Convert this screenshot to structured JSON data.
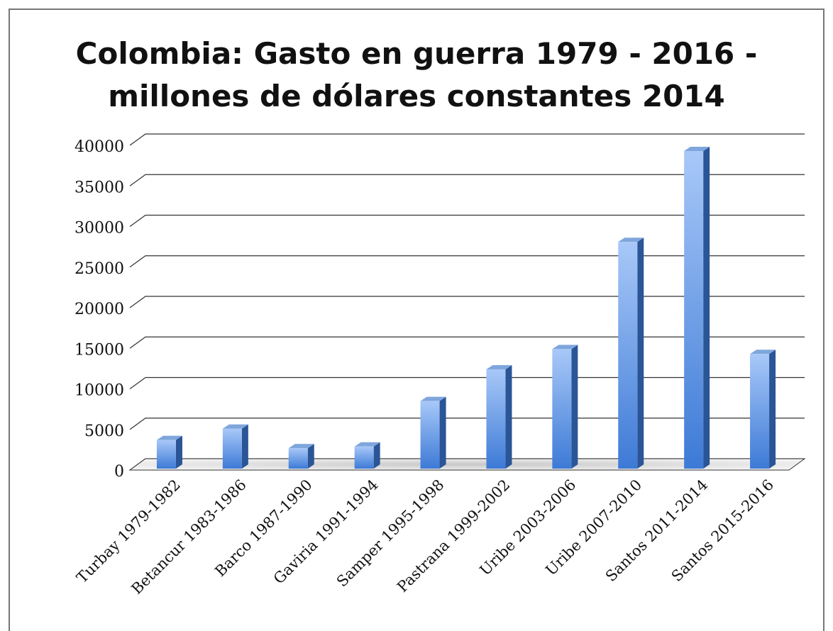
{
  "chart_data": {
    "type": "bar",
    "title_lines": [
      "Colombia: Gasto en guerra 1979 - 2016 -",
      "millones de dólares constantes 2014"
    ],
    "xlabel": "",
    "ylabel": "",
    "categories": [
      "Turbay 1979-1982",
      "Betancur 1983-1986",
      "Barco 1987-1990",
      "Gaviria 1991-1994",
      "Samper 1995-1998",
      "Pastrana 1999-2002",
      "Uribe 2003-2006",
      "Uribe 2007-2010",
      "Santos 2011-2014",
      "Santos 2015-2016"
    ],
    "values": [
      3700,
      5100,
      2700,
      2900,
      8500,
      12400,
      14900,
      28100,
      39300,
      14300
    ],
    "ylim": [
      0,
      40000
    ],
    "yticks": [
      "0",
      "5000",
      "10000",
      "15000",
      "20000",
      "25000",
      "30000",
      "35000",
      "40000"
    ],
    "grid": true,
    "legend": "none",
    "style": "3d-column",
    "colors": {
      "bar_front_top": "#a8c8f8",
      "bar_front_bottom": "#3d7ad6",
      "bar_side": "#2a5596",
      "bar_top": "#7fa6dc",
      "grid": "#333333"
    }
  }
}
